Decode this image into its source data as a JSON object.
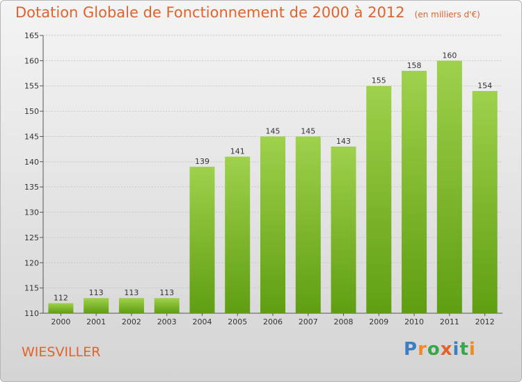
{
  "title": {
    "main": "Dotation Globale de Fonctionnement de 2000 à 2012",
    "unit": "(en milliers d'€)"
  },
  "commune": "WIESVILLER",
  "logo": {
    "text": "Proxiti",
    "letters": [
      {
        "char": "P",
        "color": "#3a7fc4"
      },
      {
        "char": "r",
        "color": "#f08a24"
      },
      {
        "char": "o",
        "color": "#3aa54a"
      },
      {
        "char": "x",
        "color": "#e2622b"
      },
      {
        "char": "i",
        "color": "#3a7fc4"
      },
      {
        "char": "t",
        "color": "#3aa54a"
      },
      {
        "char": "i",
        "color": "#f08a24"
      }
    ]
  },
  "colors": {
    "title": "#e2622b",
    "bar_top": "#9fd14c",
    "bar_bottom": "#5f9e12",
    "grid": "#c8c8c8"
  },
  "chart_data": {
    "type": "bar",
    "title": "Dotation Globale de Fonctionnement de 2000 à 2012",
    "subtitle": "(en milliers d'€)",
    "xlabel": "",
    "ylabel": "",
    "categories": [
      "2000",
      "2001",
      "2002",
      "2003",
      "2004",
      "2005",
      "2006",
      "2007",
      "2008",
      "2009",
      "2010",
      "2011",
      "2012"
    ],
    "values": [
      112,
      113,
      113,
      113,
      139,
      141,
      145,
      145,
      143,
      155,
      158,
      160,
      154
    ],
    "ylim": [
      110,
      165
    ],
    "yticks": [
      110,
      115,
      120,
      125,
      130,
      135,
      140,
      145,
      150,
      155,
      160,
      165
    ],
    "grid": true,
    "data_labels": true
  }
}
